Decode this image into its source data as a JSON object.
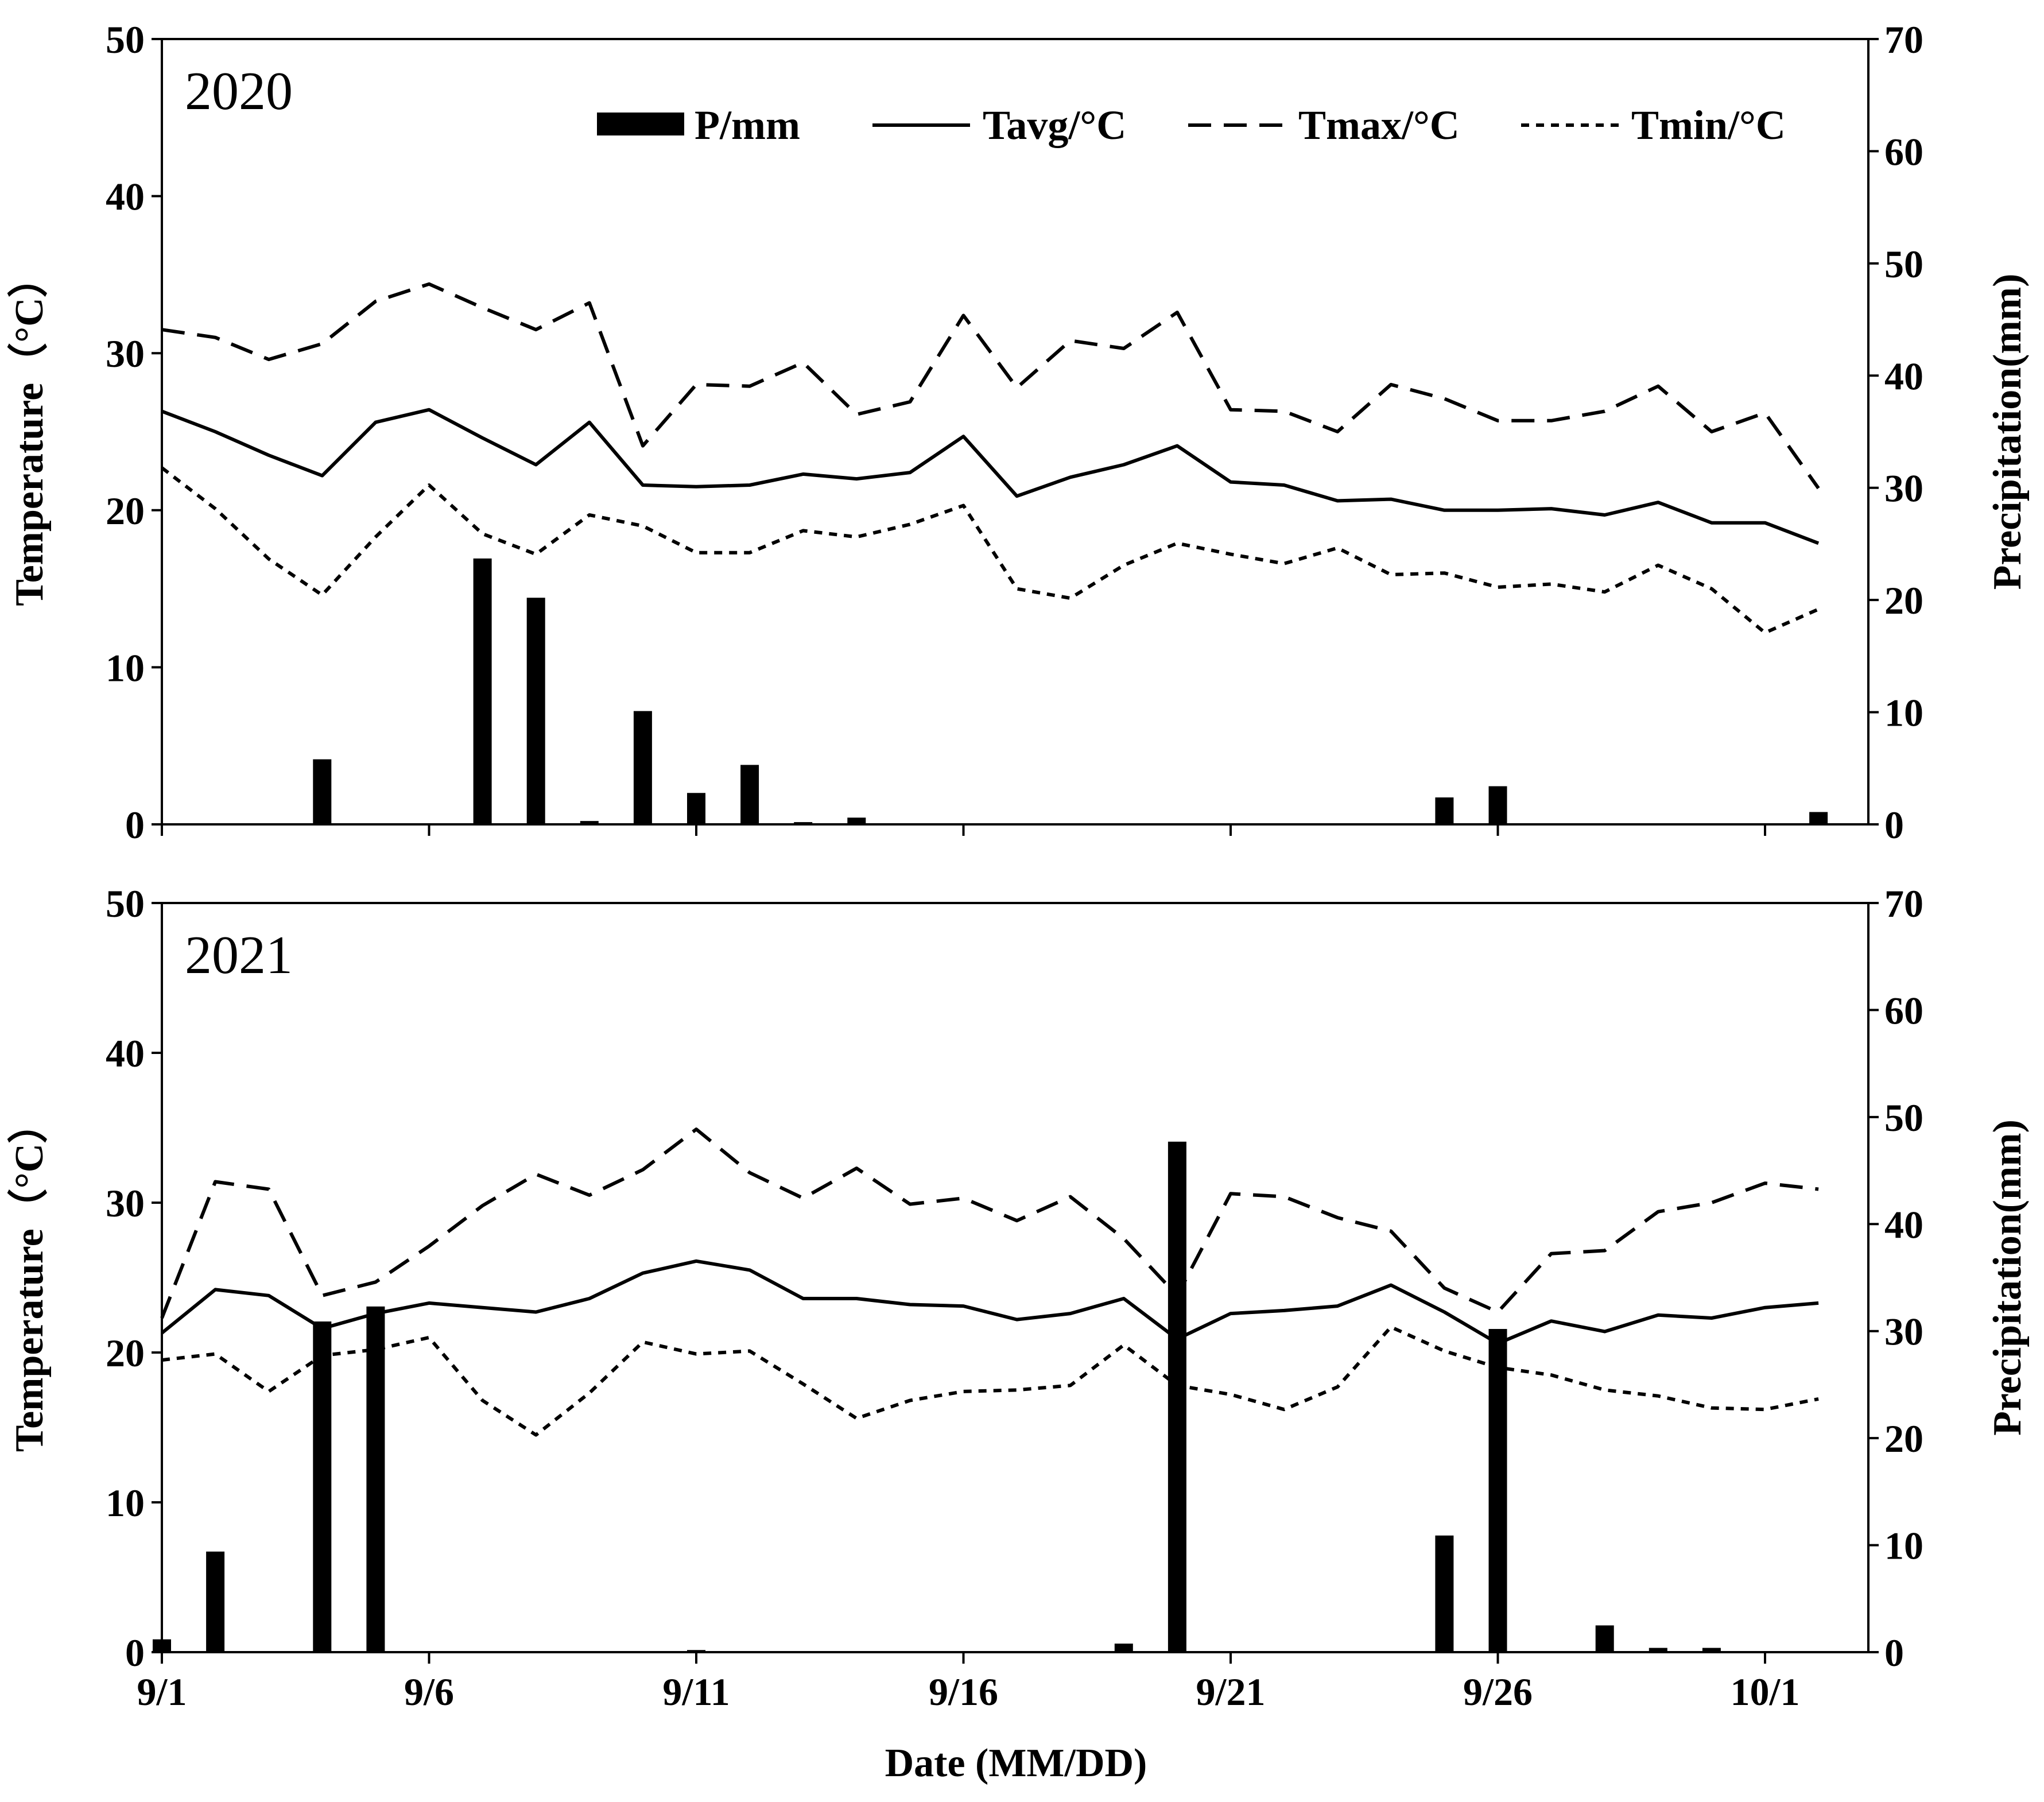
{
  "chart_data": [
    {
      "type": "bar+line",
      "panel_label": "2020",
      "categories": [
        "9/1",
        "9/2",
        "9/3",
        "9/4",
        "9/5",
        "9/6",
        "9/7",
        "9/8",
        "9/9",
        "9/10",
        "9/11",
        "9/12",
        "9/13",
        "9/14",
        "9/15",
        "9/16",
        "9/17",
        "9/18",
        "9/19",
        "9/20",
        "9/21",
        "9/22",
        "9/23",
        "9/24",
        "9/25",
        "9/26",
        "9/27",
        "9/28",
        "9/29",
        "9/30",
        "10/1",
        "10/2"
      ],
      "x_tick_labels": [
        "9/1",
        "9/6",
        "9/11",
        "9/16",
        "9/21",
        "9/26",
        "10/1"
      ],
      "ylabel": "Temperature（°C）",
      "ylabel_right": "Precipitation(mm)",
      "ylim": [
        0,
        50
      ],
      "ylim_right": [
        0,
        70
      ],
      "y_ticks": [
        "0",
        "10",
        "20",
        "30",
        "40",
        "50"
      ],
      "y_ticks_right": [
        "0",
        "10",
        "20",
        "30",
        "40",
        "50",
        "60",
        "70"
      ],
      "legend": [
        "P/mm",
        "Tavg/°C",
        "Tmax/°C",
        "Tmin/°C"
      ],
      "series": [
        {
          "name": "P/mm",
          "axis": "right",
          "style": "bar",
          "values": [
            0,
            0,
            0,
            5.8,
            0,
            0,
            23.7,
            20.2,
            0.3,
            10.1,
            2.8,
            5.3,
            0.2,
            0.6,
            0,
            0,
            0,
            0,
            0,
            0,
            0,
            0,
            0,
            0,
            2.4,
            3.4,
            0.1,
            0.1,
            0.1,
            0,
            0,
            1.1
          ]
        },
        {
          "name": "Tavg/°C",
          "axis": "left",
          "style": "solid",
          "values": [
            26.3,
            25.0,
            23.5,
            22.2,
            25.6,
            26.4,
            24.6,
            22.9,
            25.6,
            21.6,
            21.5,
            21.6,
            22.3,
            22.0,
            22.4,
            24.7,
            20.9,
            22.1,
            22.9,
            24.1,
            21.8,
            21.6,
            20.6,
            20.7,
            20.0,
            20.0,
            20.1,
            19.7,
            20.5,
            19.2,
            19.2,
            17.9
          ]
        },
        {
          "name": "Tmax/°C",
          "axis": "left",
          "style": "dashed",
          "values": [
            31.5,
            31.0,
            29.6,
            30.6,
            33.3,
            34.4,
            32.9,
            31.5,
            33.2,
            24.1,
            28.0,
            27.9,
            29.4,
            26.1,
            26.9,
            32.4,
            27.8,
            30.8,
            30.3,
            32.6,
            26.4,
            26.3,
            25.0,
            28.0,
            27.1,
            25.7,
            25.7,
            26.3,
            27.9,
            25.0,
            26.2,
            21.4
          ]
        },
        {
          "name": "Tmin/°C",
          "axis": "left",
          "style": "dotted",
          "values": [
            22.7,
            20.1,
            16.9,
            14.6,
            18.3,
            21.6,
            18.5,
            17.2,
            19.7,
            19.0,
            17.3,
            17.3,
            18.7,
            18.3,
            19.1,
            20.3,
            15.0,
            14.4,
            16.5,
            17.9,
            17.2,
            16.6,
            17.6,
            15.9,
            16.0,
            15.1,
            15.3,
            14.8,
            16.5,
            15.0,
            12.2,
            13.7
          ]
        }
      ]
    },
    {
      "type": "bar+line",
      "panel_label": "2021",
      "categories": [
        "9/1",
        "9/2",
        "9/3",
        "9/4",
        "9/5",
        "9/6",
        "9/7",
        "9/8",
        "9/9",
        "9/10",
        "9/11",
        "9/12",
        "9/13",
        "9/14",
        "9/15",
        "9/16",
        "9/17",
        "9/18",
        "9/19",
        "9/20",
        "9/21",
        "9/22",
        "9/23",
        "9/24",
        "9/25",
        "9/26",
        "9/27",
        "9/28",
        "9/29",
        "9/30",
        "10/1",
        "10/2"
      ],
      "x_tick_labels": [
        "9/1",
        "9/6",
        "9/11",
        "9/16",
        "9/21",
        "9/26",
        "10/1"
      ],
      "xlabel": "Date (MM/DD)",
      "ylabel": "Temperature（°C）",
      "ylabel_right": "Precipitation(mm)",
      "ylim": [
        0,
        50
      ],
      "ylim_right": [
        0,
        70
      ],
      "y_ticks": [
        "0",
        "10",
        "20",
        "30",
        "40",
        "50"
      ],
      "y_ticks_right": [
        "0",
        "10",
        "20",
        "30",
        "40",
        "50",
        "60",
        "70"
      ],
      "series": [
        {
          "name": "P/mm",
          "axis": "right",
          "style": "bar",
          "values": [
            1.2,
            9.4,
            0,
            30.9,
            32.3,
            0,
            0,
            0,
            0,
            0,
            0.2,
            0,
            0.1,
            0,
            0,
            0,
            0,
            0,
            0.8,
            47.7,
            0,
            0,
            0,
            0,
            10.9,
            30.2,
            0.1,
            2.5,
            0.4,
            0.4,
            0,
            0
          ]
        },
        {
          "name": "Tavg/°C",
          "axis": "left",
          "style": "solid",
          "values": [
            21.3,
            24.2,
            23.8,
            21.6,
            22.6,
            23.3,
            23.0,
            22.7,
            23.6,
            25.3,
            26.1,
            25.5,
            23.6,
            23.6,
            23.2,
            23.1,
            22.2,
            22.6,
            23.6,
            20.9,
            22.6,
            22.8,
            23.1,
            24.5,
            22.7,
            20.6,
            22.1,
            21.4,
            22.5,
            22.3,
            23.0,
            23.3
          ]
        },
        {
          "name": "Tmax/°C",
          "axis": "left",
          "style": "dashed",
          "values": [
            22.3,
            31.4,
            30.9,
            23.8,
            24.7,
            27.1,
            29.8,
            31.9,
            30.5,
            32.2,
            34.9,
            32.0,
            30.3,
            32.3,
            29.9,
            30.3,
            28.8,
            30.4,
            27.6,
            23.8,
            30.6,
            30.4,
            29.0,
            28.1,
            24.3,
            22.7,
            26.6,
            26.8,
            29.4,
            30.0,
            31.3,
            30.9
          ]
        },
        {
          "name": "Tmin/°C",
          "axis": "left",
          "style": "dotted",
          "values": [
            19.5,
            19.9,
            17.4,
            19.8,
            20.2,
            21.0,
            16.8,
            14.5,
            17.3,
            20.7,
            19.9,
            20.1,
            17.9,
            15.6,
            16.8,
            17.4,
            17.5,
            17.8,
            20.5,
            17.8,
            17.2,
            16.2,
            17.7,
            21.7,
            20.1,
            19.0,
            18.5,
            17.5,
            17.1,
            16.3,
            16.2,
            16.9
          ]
        }
      ]
    }
  ]
}
